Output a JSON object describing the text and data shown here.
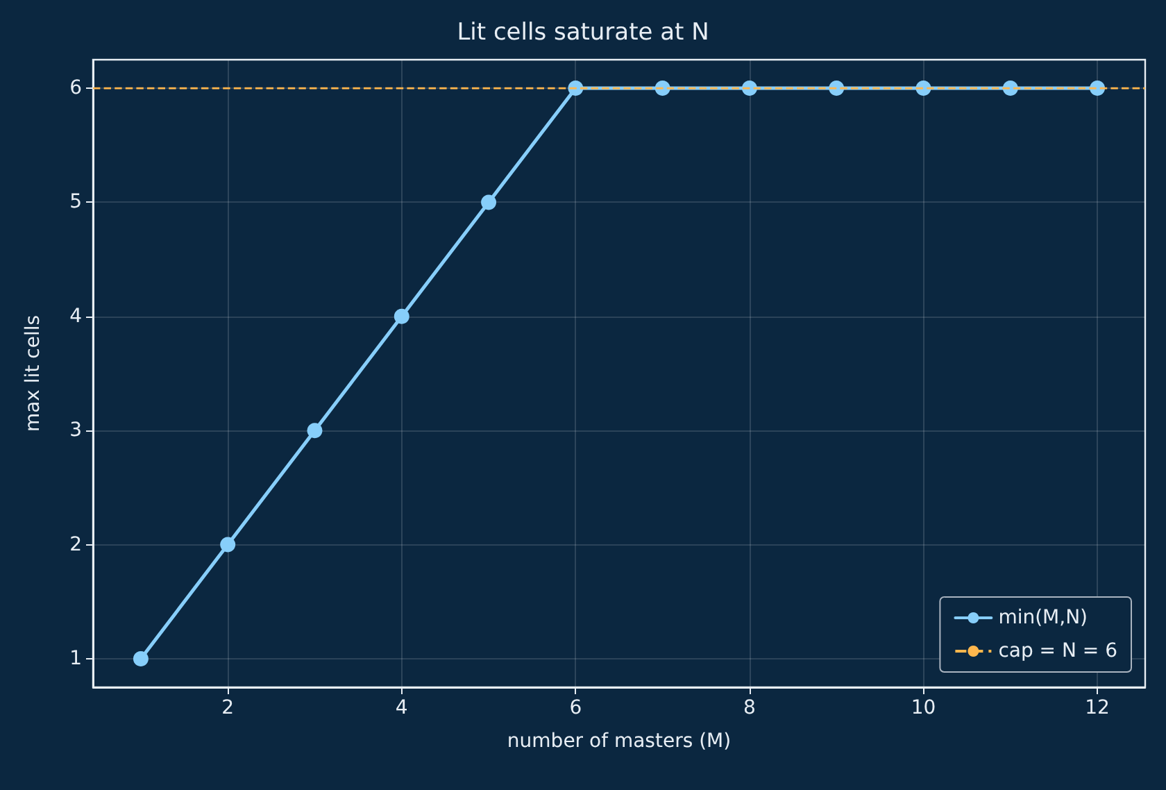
{
  "chart_data": {
    "type": "line",
    "title": "Lit cells saturate at N",
    "xlabel": "number of masters (M)",
    "ylabel": "max lit cells",
    "x": [
      1,
      2,
      3,
      4,
      5,
      6,
      7,
      8,
      9,
      10,
      11,
      12
    ],
    "series": [
      {
        "name": "min(M,N)",
        "color": "#87cefa",
        "values": [
          1,
          2,
          3,
          4,
          5,
          6,
          6,
          6,
          6,
          6,
          6,
          6
        ]
      }
    ],
    "ref_lines": [
      {
        "axis": "y",
        "value": 6,
        "label": "cap = N = 6",
        "color": "#ffb74d",
        "line_style": "dashed"
      }
    ],
    "xlim": [
      0.45,
      12.55
    ],
    "xticks": [
      2,
      4,
      6,
      8,
      10,
      12
    ],
    "ylim": [
      0.75,
      6.25
    ],
    "yticks": [
      1,
      2,
      3,
      4,
      5,
      6
    ],
    "grid": true,
    "legend": "bottom right",
    "marker": "circle",
    "line_style": "solid"
  }
}
